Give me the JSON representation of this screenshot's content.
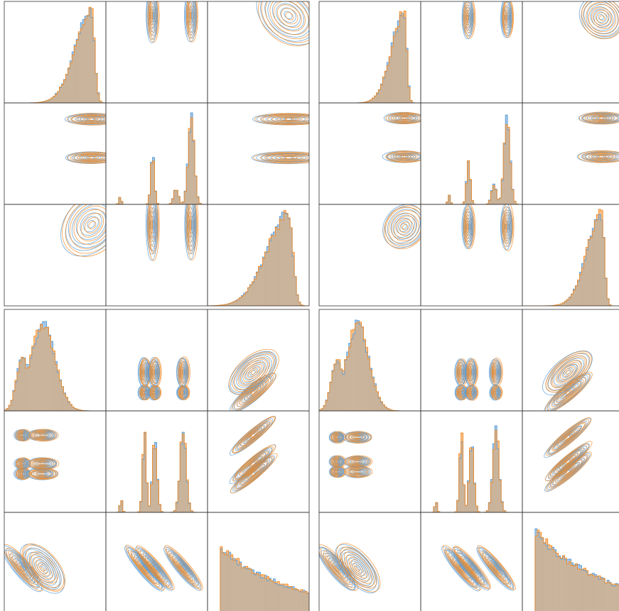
{
  "colors": {
    "series_a": "#5b9bd5",
    "series_b": "#f28c28",
    "overlap_fill": "#c9b39a",
    "frame": "#333333",
    "background": "#ffffff"
  },
  "chart_data": [
    {
      "type": "corner",
      "panel": "top-left",
      "dims": 3,
      "series": [
        {
          "name": ""
        },
        {
          "name": ""
        }
      ],
      "diagonal": [
        {
          "type": "histogram",
          "peak_x": 0.86,
          "width": 0.09,
          "skew": "left-tail"
        },
        {
          "type": "histogram",
          "modes": [
            0.14,
            0.46,
            0.69,
            0.84
          ],
          "heights": [
            0.08,
            0.55,
            0.17,
            0.95
          ],
          "narrow": true
        },
        {
          "type": "histogram",
          "peak_x": 0.8,
          "width": 0.12,
          "skew": "left-tail"
        }
      ],
      "contour_levels": 8,
      "grid": false
    },
    {
      "type": "corner",
      "panel": "top-right",
      "dims": 3,
      "series": [
        {
          "name": ""
        },
        {
          "name": ""
        }
      ],
      "diagonal": [
        {
          "type": "histogram",
          "peak_x": 0.84,
          "width": 0.07,
          "skew": "left-tail"
        },
        {
          "type": "histogram",
          "modes": [
            0.28,
            0.47,
            0.72,
            0.85
          ],
          "heights": [
            0.1,
            0.5,
            0.22,
            0.95
          ],
          "narrow": true
        },
        {
          "type": "histogram",
          "peak_x": 0.78,
          "width": 0.08,
          "skew": "left-tail"
        }
      ],
      "contour_levels": 8,
      "grid": false
    },
    {
      "type": "corner",
      "panel": "bottom-left",
      "dims": 3,
      "series": [
        {
          "name": ""
        },
        {
          "name": ""
        }
      ],
      "diagonal": [
        {
          "type": "histogram",
          "modes": [
            0.18,
            0.38
          ],
          "heights": [
            0.6,
            0.95
          ],
          "widths": [
            0.06,
            0.12
          ]
        },
        {
          "type": "histogram",
          "modes": [
            0.15,
            0.38,
            0.48,
            0.76
          ],
          "heights": [
            0.15,
            0.9,
            0.8,
            0.92
          ],
          "narrow": true
        },
        {
          "type": "histogram",
          "shape": "decay",
          "start_x": 0.12,
          "height": 0.72
        }
      ],
      "contour_levels": 9,
      "grid": false
    },
    {
      "type": "corner",
      "panel": "bottom-right",
      "dims": 3,
      "series": [
        {
          "name": ""
        },
        {
          "name": ""
        }
      ],
      "diagonal": [
        {
          "type": "histogram",
          "modes": [
            0.18,
            0.38
          ],
          "heights": [
            0.55,
            0.95
          ],
          "widths": [
            0.06,
            0.11
          ]
        },
        {
          "type": "histogram",
          "modes": [
            0.15,
            0.4,
            0.5,
            0.74
          ],
          "heights": [
            0.12,
            0.88,
            0.78,
            0.94
          ],
          "narrow": true
        },
        {
          "type": "histogram",
          "shape": "decay",
          "start_x": 0.12,
          "height": 0.9
        }
      ],
      "contour_levels": 9,
      "grid": false
    }
  ]
}
